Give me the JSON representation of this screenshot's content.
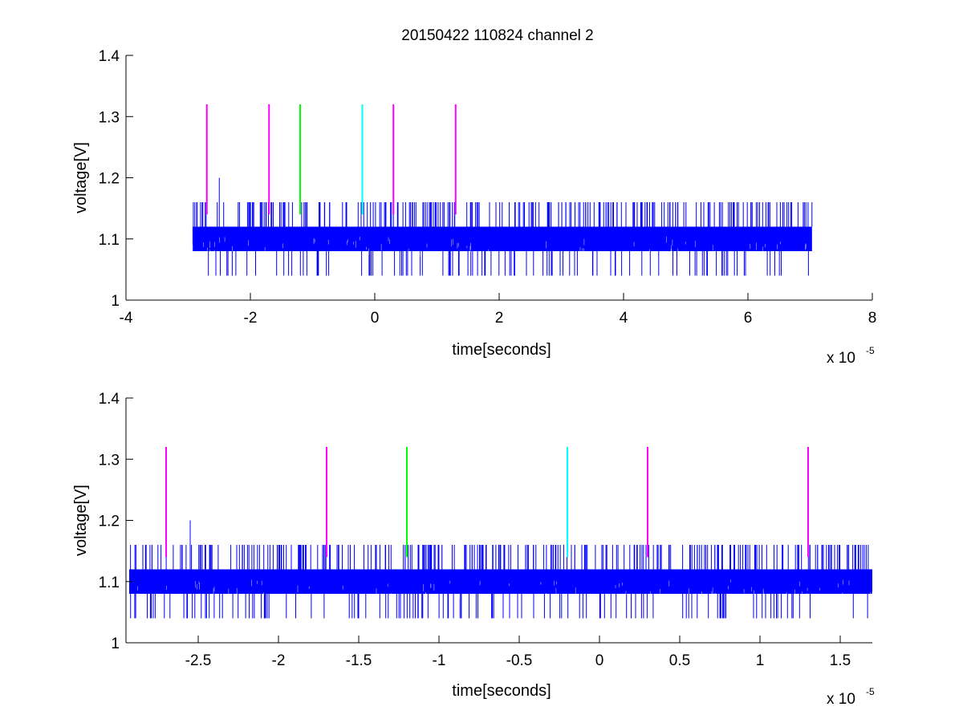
{
  "figure": {
    "title": "20150422 110824 channel 2"
  },
  "chart_data": [
    {
      "type": "line",
      "title": "20150422 110824 channel 2",
      "xlabel": "time[seconds]",
      "ylabel": "voltage[V]",
      "x_exponent_label": "x 10",
      "x_exponent_power": "-5",
      "xlim": [
        -4,
        8
      ],
      "ylim": [
        1,
        1.4
      ],
      "x_ticks": [
        -4,
        -2,
        0,
        2,
        4,
        6,
        8
      ],
      "x_tick_labels": [
        "-4",
        "-2",
        "0",
        "2",
        "4",
        "6",
        "8"
      ],
      "y_ticks": [
        1,
        1.1,
        1.2,
        1.3,
        1.4
      ],
      "y_tick_labels": [
        "1",
        "1.1",
        "1.2",
        "1.3",
        "1.4"
      ],
      "grid": false,
      "signal": {
        "color": "#0000ff",
        "x_start": -2.93,
        "x_end": 7.03,
        "band": [
          1.08,
          1.12
        ],
        "spike_high": 1.16,
        "spike_low": 1.04,
        "spike_max": 1.2,
        "spike_max_x": -2.5
      },
      "markers": [
        {
          "x": -2.7,
          "y0": 1.14,
          "y1": 1.32,
          "color": "#ff00ff"
        },
        {
          "x": -1.7,
          "y0": 1.14,
          "y1": 1.32,
          "color": "#ff00ff"
        },
        {
          "x": -1.2,
          "y0": 1.14,
          "y1": 1.32,
          "color": "#00ff00"
        },
        {
          "x": -0.2,
          "y0": 1.14,
          "y1": 1.32,
          "color": "#00ffff"
        },
        {
          "x": 0.3,
          "y0": 1.14,
          "y1": 1.32,
          "color": "#ff00ff"
        },
        {
          "x": 1.3,
          "y0": 1.14,
          "y1": 1.32,
          "color": "#ff00ff"
        }
      ]
    },
    {
      "type": "line",
      "title": "",
      "xlabel": "time[seconds]",
      "ylabel": "voltage[V]",
      "x_exponent_label": "x 10",
      "x_exponent_power": "-5",
      "xlim": [
        -2.95,
        1.7
      ],
      "ylim": [
        1,
        1.4
      ],
      "x_ticks": [
        -3,
        -2.5,
        -2,
        -1.5,
        -1,
        -0.5,
        0,
        0.5,
        1,
        1.5
      ],
      "x_tick_labels": [
        "-3",
        "-2.5",
        "-2",
        "-1.5",
        "-1",
        "-0.5",
        "0",
        "0.5",
        "1",
        "1.5"
      ],
      "y_ticks": [
        1,
        1.1,
        1.2,
        1.3,
        1.4
      ],
      "y_tick_labels": [
        "1",
        "1.1",
        "1.2",
        "1.3",
        "1.4"
      ],
      "grid": false,
      "signal": {
        "color": "#0000ff",
        "x_start": -2.93,
        "x_end": 1.7,
        "band": [
          1.08,
          1.12
        ],
        "spike_high": 1.16,
        "spike_low": 1.04,
        "spike_max": 1.2,
        "spike_max_x": -2.55
      },
      "markers": [
        {
          "x": -2.7,
          "y0": 1.14,
          "y1": 1.32,
          "color": "#ff00ff"
        },
        {
          "x": -1.7,
          "y0": 1.14,
          "y1": 1.32,
          "color": "#ff00ff"
        },
        {
          "x": -1.2,
          "y0": 1.14,
          "y1": 1.32,
          "color": "#00ff00"
        },
        {
          "x": -0.2,
          "y0": 1.14,
          "y1": 1.32,
          "color": "#00ffff"
        },
        {
          "x": 0.3,
          "y0": 1.14,
          "y1": 1.32,
          "color": "#ff00ff"
        },
        {
          "x": 1.3,
          "y0": 1.14,
          "y1": 1.32,
          "color": "#ff00ff"
        }
      ]
    }
  ]
}
